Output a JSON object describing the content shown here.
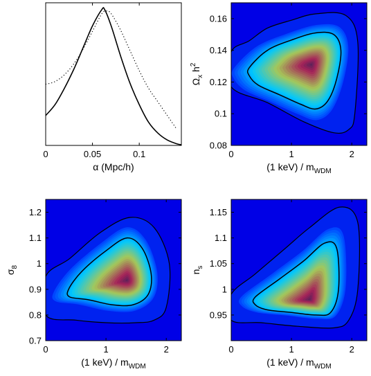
{
  "chart_data": [
    {
      "type": "line",
      "xlabel": "α   (Mpc/h)",
      "ylabel": "",
      "xlim": [
        0,
        0.145
      ],
      "ylim": [
        0,
        1.05
      ],
      "xticks": [
        "0",
        "0.05",
        "0.1"
      ],
      "xtick_values": [
        0,
        0.05,
        0.1
      ],
      "series": [
        {
          "style": "solid",
          "x": [
            0,
            0.01,
            0.02,
            0.03,
            0.04,
            0.05,
            0.06,
            0.063,
            0.07,
            0.08,
            0.09,
            0.1,
            0.11,
            0.12,
            0.13,
            0.14,
            0.145
          ],
          "y": [
            0.22,
            0.3,
            0.42,
            0.56,
            0.72,
            0.88,
            1.0,
            1.0,
            0.88,
            0.66,
            0.46,
            0.3,
            0.17,
            0.09,
            0.04,
            0.012,
            0.005
          ]
        },
        {
          "style": "dotted",
          "x": [
            0,
            0.01,
            0.02,
            0.03,
            0.04,
            0.05,
            0.06,
            0.065,
            0.07,
            0.08,
            0.09,
            0.1,
            0.11,
            0.12,
            0.13,
            0.14
          ],
          "y": [
            0.45,
            0.47,
            0.52,
            0.6,
            0.71,
            0.84,
            0.97,
            0.99,
            0.97,
            0.85,
            0.7,
            0.55,
            0.42,
            0.32,
            0.22,
            0.12
          ]
        }
      ]
    },
    {
      "type": "heatmap",
      "xlabel": "(1 keV) / m",
      "xlabel_sub": "WDM",
      "ylabel": "Ω",
      "ylabel_sub": "x",
      "ylabel_tail": " h",
      "ylabel_sup": "2",
      "xlim": [
        0,
        2.25
      ],
      "ylim": [
        0.08,
        0.17
      ],
      "xticks": [
        "0",
        "1",
        "2"
      ],
      "xtick_values": [
        0,
        1,
        2
      ],
      "yticks": [
        "0.08",
        "0.1",
        "0.12",
        "0.14",
        "0.16"
      ],
      "ytick_values": [
        0.08,
        0.1,
        0.12,
        0.14,
        0.16
      ],
      "peak": [
        1.33,
        0.131
      ],
      "contours": [
        {
          "level": "inner",
          "points": [
            [
              0.3,
              0.129
            ],
            [
              0.6,
              0.14
            ],
            [
              1.0,
              0.1465
            ],
            [
              1.4,
              0.151
            ],
            [
              1.7,
              0.15
            ],
            [
              1.82,
              0.14
            ],
            [
              1.75,
              0.122
            ],
            [
              1.6,
              0.108
            ],
            [
              1.4,
              0.103
            ],
            [
              1.15,
              0.106
            ],
            [
              0.8,
              0.112
            ],
            [
              0.45,
              0.118
            ],
            [
              0.3,
              0.124
            ]
          ]
        },
        {
          "level": "outer",
          "points": [
            [
              0.0,
              0.139
            ],
            [
              0.3,
              0.146
            ],
            [
              0.6,
              0.154
            ],
            [
              1.0,
              0.159
            ],
            [
              1.4,
              0.163
            ],
            [
              1.9,
              0.162
            ],
            [
              2.1,
              0.145
            ],
            [
              2.05,
              0.1
            ],
            [
              1.95,
              0.09
            ],
            [
              1.7,
              0.088
            ],
            [
              1.2,
              0.095
            ],
            [
              0.6,
              0.107
            ],
            [
              0.0,
              0.117
            ]
          ]
        }
      ]
    },
    {
      "type": "heatmap",
      "xlabel": "(1 keV) / m",
      "xlabel_sub": "WDM",
      "ylabel": "σ",
      "ylabel_sub": "8",
      "xlim": [
        0,
        2.25
      ],
      "ylim": [
        0.7,
        1.25
      ],
      "xticks": [
        "0",
        "1",
        "2"
      ],
      "xtick_values": [
        0,
        1,
        2
      ],
      "yticks": [
        "0.7",
        "0.8",
        "0.9",
        "1",
        "1.1",
        "1.2"
      ],
      "ytick_values": [
        0.7,
        0.8,
        0.9,
        1.0,
        1.1,
        1.2
      ],
      "peak": [
        1.35,
        0.935
      ],
      "contours": [
        {
          "level": "inner",
          "points": [
            [
              0.38,
              0.9
            ],
            [
              0.6,
              0.97
            ],
            [
              1.0,
              1.05
            ],
            [
              1.35,
              1.1
            ],
            [
              1.6,
              1.06
            ],
            [
              1.75,
              0.96
            ],
            [
              1.7,
              0.88
            ],
            [
              1.45,
              0.84
            ],
            [
              1.1,
              0.84
            ],
            [
              0.7,
              0.86
            ],
            [
              0.4,
              0.87
            ]
          ]
        },
        {
          "level": "outer",
          "points": [
            [
              0.0,
              0.95
            ],
            [
              0.4,
              1.02
            ],
            [
              0.9,
              1.12
            ],
            [
              1.4,
              1.18
            ],
            [
              1.8,
              1.14
            ],
            [
              2.05,
              1.0
            ],
            [
              2.0,
              0.83
            ],
            [
              1.8,
              0.78
            ],
            [
              1.5,
              0.77
            ],
            [
              1.0,
              0.77
            ],
            [
              0.5,
              0.78
            ],
            [
              0.0,
              0.8
            ]
          ]
        }
      ]
    },
    {
      "type": "heatmap",
      "xlabel": "(1 keV) / m",
      "xlabel_sub": "WDM",
      "ylabel": "n",
      "ylabel_sub": "s",
      "xlim": [
        0,
        2.25
      ],
      "ylim": [
        0.9,
        1.175
      ],
      "xticks": [
        "0",
        "1",
        "2"
      ],
      "xtick_values": [
        0,
        1,
        2
      ],
      "yticks": [
        "0.95",
        "1",
        "1.05",
        "1.1",
        "1.15"
      ],
      "ytick_values": [
        0.95,
        1.0,
        1.05,
        1.1,
        1.15
      ],
      "peak": [
        1.3,
        0.98
      ],
      "contours": [
        {
          "level": "inner",
          "points": [
            [
              0.4,
              0.985
            ],
            [
              0.8,
              1.02
            ],
            [
              1.2,
              1.055
            ],
            [
              1.55,
              1.09
            ],
            [
              1.75,
              1.08
            ],
            [
              1.78,
              1.0
            ],
            [
              1.65,
              0.955
            ],
            [
              1.4,
              0.95
            ],
            [
              1.0,
              0.955
            ],
            [
              0.6,
              0.96
            ],
            [
              0.4,
              0.97
            ]
          ]
        },
        {
          "level": "outer",
          "points": [
            [
              0.0,
              0.99
            ],
            [
              0.4,
              1.03
            ],
            [
              0.9,
              1.08
            ],
            [
              1.3,
              1.12
            ],
            [
              1.8,
              1.16
            ],
            [
              2.1,
              1.13
            ],
            [
              2.1,
              1.0
            ],
            [
              1.95,
              0.94
            ],
            [
              1.7,
              0.925
            ],
            [
              1.1,
              0.928
            ],
            [
              0.5,
              0.935
            ],
            [
              0.0,
              0.94
            ]
          ]
        }
      ]
    }
  ]
}
